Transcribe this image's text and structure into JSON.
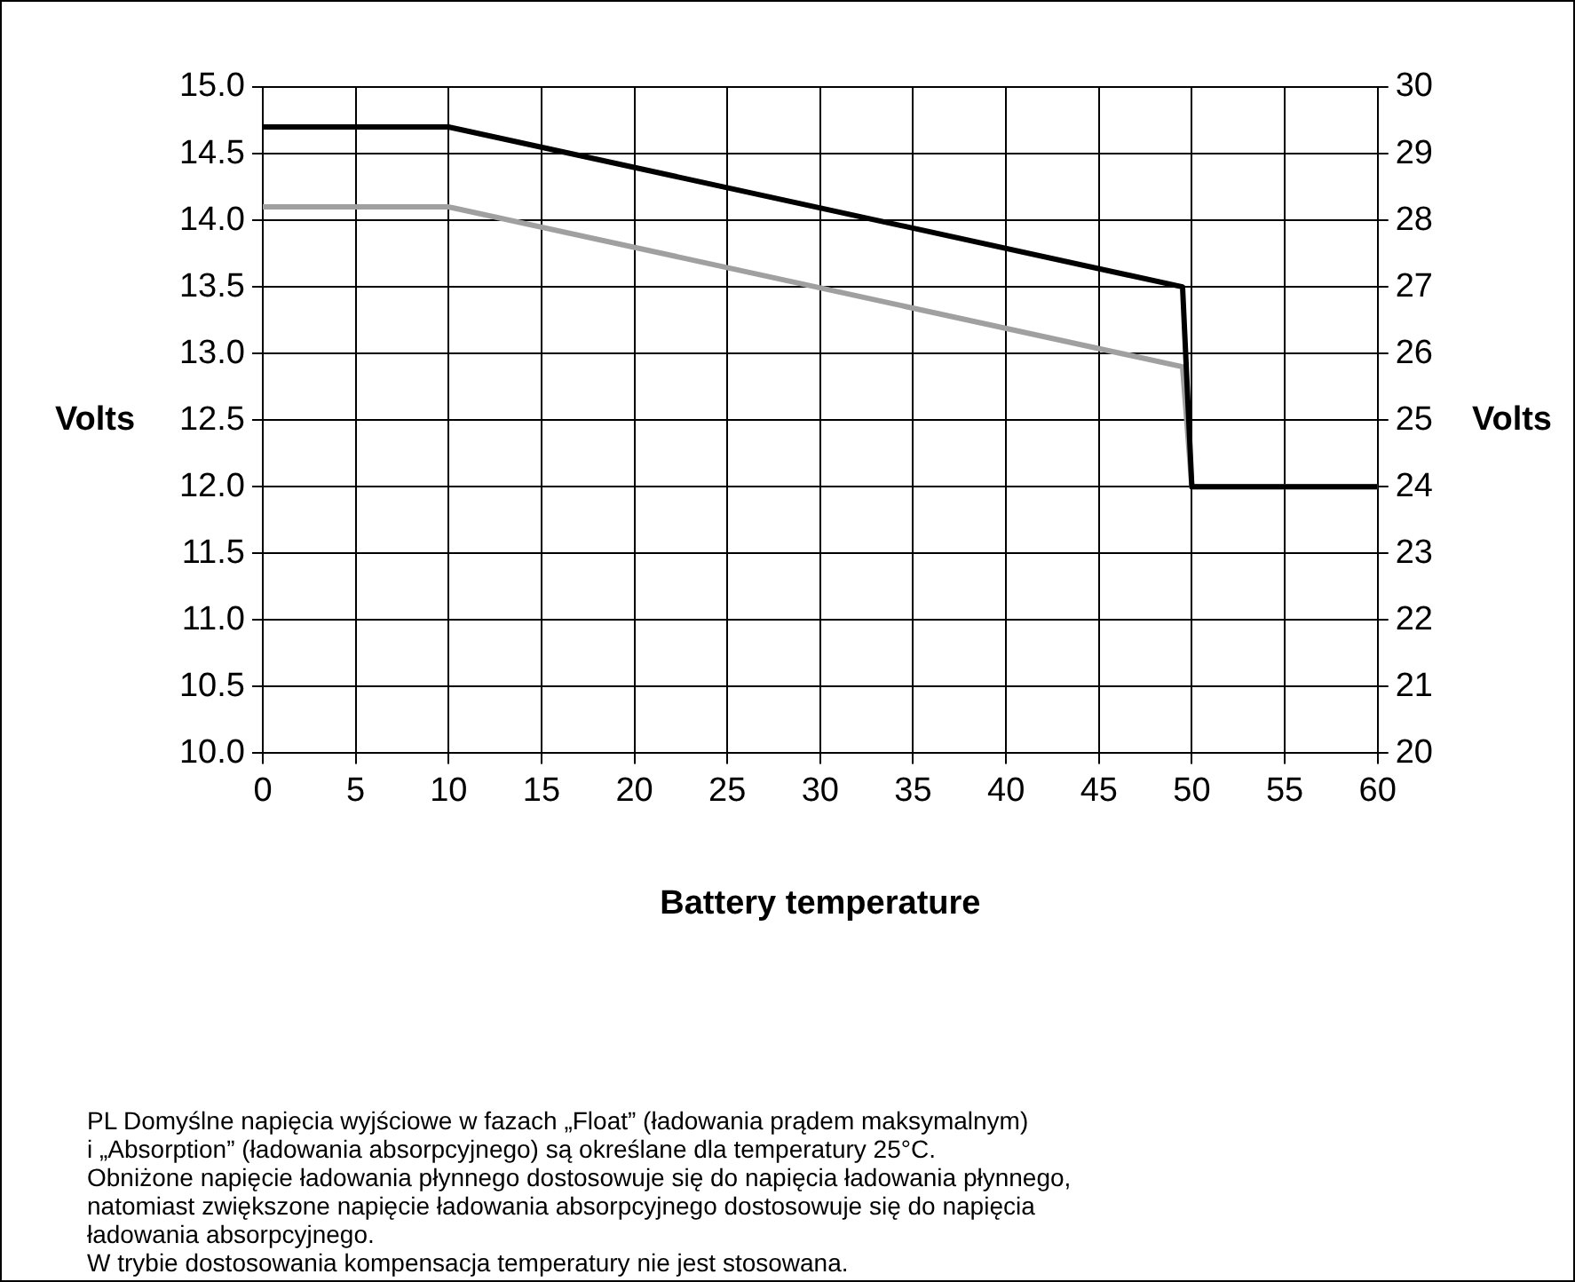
{
  "chart_data": {
    "type": "line",
    "xlabel": "Battery temperature",
    "ylabel": "Volts",
    "y2label": "Volts",
    "series": [
      {
        "color": "#000000",
        "x": [
          0,
          10,
          49.5,
          50,
          60
        ],
        "values": [
          14.7,
          14.7,
          13.5,
          12.0,
          12.0
        ]
      },
      {
        "color": "#a0a0a0",
        "x": [
          0,
          10,
          49.5,
          50,
          60
        ],
        "values": [
          14.1,
          14.1,
          12.9,
          12.0,
          12.0
        ]
      }
    ],
    "xlim": [
      0,
      60
    ],
    "xticks": [
      0,
      5,
      10,
      15,
      20,
      25,
      30,
      35,
      40,
      45,
      50,
      55,
      60
    ],
    "ylim": [
      10,
      15
    ],
    "yticks": [
      {
        "value": 10,
        "label": "10.0"
      },
      {
        "value": 10.5,
        "label": "10.5"
      },
      {
        "value": 11,
        "label": "11.0"
      },
      {
        "value": 11.5,
        "label": "11.5"
      },
      {
        "value": 12,
        "label": "12.0"
      },
      {
        "value": 12.5,
        "label": "12.5"
      },
      {
        "value": 13,
        "label": "13.0"
      },
      {
        "value": 13.5,
        "label": "13.5"
      },
      {
        "value": 14,
        "label": "14.0"
      },
      {
        "value": 14.5,
        "label": "14.5"
      },
      {
        "value": 15,
        "label": "15.0"
      }
    ],
    "y2lim": [
      20,
      30
    ],
    "y2ticks": [
      20,
      21,
      22,
      23,
      24,
      25,
      26,
      27,
      28,
      29,
      30
    ],
    "grid": true,
    "legend": false,
    "marker": "none",
    "line_style": "solid",
    "annotations": [
      "PL Domyślne napięcia wyjściowe w fazach „Float” (ładowania prądem maksymalnym)",
      "i „Absorption” (ładowania absorpcyjnego) są określane dla temperatury 25°C.",
      "Obniżone napięcie ładowania płynnego dostosowuje się do napięcia ładowania płynnego,",
      "natomiast zwiększone napięcie ładowania absorpcyjnego dostosowuje się do napięcia",
      "ładowania absorpcyjnego.",
      "W trybie dostosowania kompensacja temperatury nie jest stosowana."
    ]
  }
}
